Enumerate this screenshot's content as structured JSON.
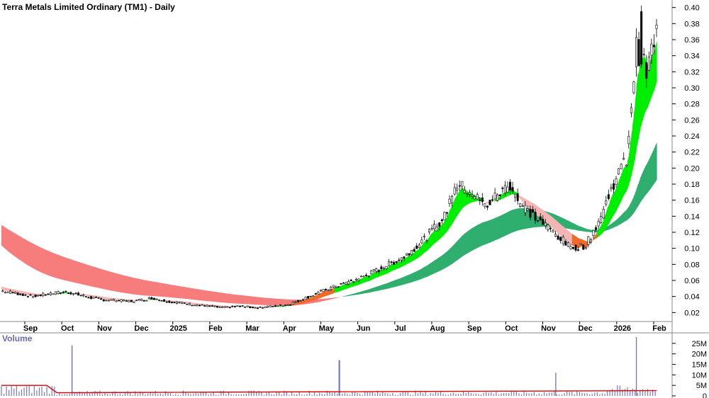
{
  "chart_data": [
    {
      "type": "candlestick",
      "title": "Terra Metals Limited Ordinary (TM1) - Daily",
      "ylim": [
        0.0,
        0.405
      ],
      "y_ticks": [
        "0.40",
        "0.38",
        "0.36",
        "0.34",
        "0.32",
        "0.30",
        "0.28",
        "0.26",
        "0.24",
        "0.22",
        "0.20",
        "0.18",
        "0.16",
        "0.14",
        "0.12",
        "0.10",
        "0.08",
        "0.06",
        "0.04",
        "0.02"
      ],
      "x_tick_labels": [
        "Sep",
        "Oct",
        "Nov",
        "Dec",
        "2025",
        "Feb",
        "Mar",
        "Apr",
        "May",
        "Jun",
        "Jul",
        "Aug",
        "Sep",
        "Oct",
        "Nov",
        "Dec",
        "2026",
        "Feb"
      ],
      "price_path": [
        {
          "t": 0,
          "close": 0.047
        },
        {
          "t": 3,
          "close": 0.044
        },
        {
          "t": 6,
          "close": 0.04
        },
        {
          "t": 9,
          "close": 0.043
        },
        {
          "t": 13,
          "close": 0.046
        },
        {
          "t": 16,
          "close": 0.041
        },
        {
          "t": 20,
          "close": 0.036
        },
        {
          "t": 26,
          "close": 0.034
        },
        {
          "t": 30,
          "close": 0.038
        },
        {
          "t": 33,
          "close": 0.034
        },
        {
          "t": 38,
          "close": 0.03
        },
        {
          "t": 44,
          "close": 0.026
        },
        {
          "t": 47,
          "close": 0.028
        },
        {
          "t": 51,
          "close": 0.026
        },
        {
          "t": 57,
          "close": 0.03
        },
        {
          "t": 61,
          "close": 0.04
        },
        {
          "t": 65,
          "close": 0.05
        },
        {
          "t": 70,
          "close": 0.06
        },
        {
          "t": 75,
          "close": 0.074
        },
        {
          "t": 80,
          "close": 0.09
        },
        {
          "t": 84,
          "close": 0.112
        },
        {
          "t": 88,
          "close": 0.14
        },
        {
          "t": 90,
          "close": 0.18
        },
        {
          "t": 93,
          "close": 0.172
        },
        {
          "t": 96,
          "close": 0.152
        },
        {
          "t": 99,
          "close": 0.17
        },
        {
          "t": 101,
          "close": 0.18
        },
        {
          "t": 103,
          "close": 0.155
        },
        {
          "t": 106,
          "close": 0.138
        },
        {
          "t": 110,
          "close": 0.118
        },
        {
          "t": 113,
          "close": 0.1
        },
        {
          "t": 116,
          "close": 0.104
        },
        {
          "t": 119,
          "close": 0.14
        },
        {
          "t": 122,
          "close": 0.19
        },
        {
          "t": 124,
          "close": 0.21
        },
        {
          "t": 126,
          "close": 0.35
        },
        {
          "t": 128,
          "close": 0.32
        },
        {
          "t": 130,
          "close": 0.37
        }
      ],
      "peak_high": 0.395,
      "short_mma_colors": {
        "up": "#00ee00",
        "down": "#f5b5b5"
      },
      "long_mma_colors": {
        "up": "#2fae6e",
        "down": "#f77c7c"
      },
      "crossover_color": "#f06a2a"
    },
    {
      "type": "bar",
      "title": "Volume",
      "ylim": [
        0,
        30000000
      ],
      "y_ticks": [
        "25M",
        "20M",
        "15M",
        "10M",
        "5M",
        "0"
      ],
      "spikes": [
        {
          "t": 14,
          "value": 24000000
        },
        {
          "t": 67,
          "value": 17000000
        },
        {
          "t": 110,
          "value": 11000000
        },
        {
          "t": 126,
          "value": 28000000
        }
      ],
      "base_volume": 1500000,
      "ma_line": [
        {
          "t": 0,
          "value": 5000000
        },
        {
          "t": 9,
          "value": 5000000
        },
        {
          "t": 11,
          "value": 1500000
        },
        {
          "t": 130,
          "value": 2500000
        }
      ],
      "bar_color": "#7878c8",
      "ma_color": "#dd0000"
    }
  ]
}
